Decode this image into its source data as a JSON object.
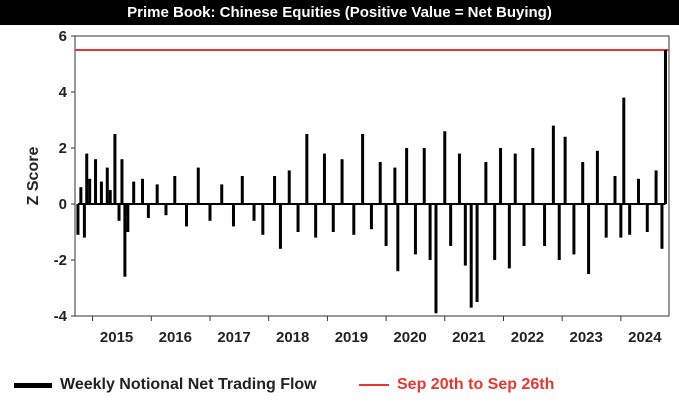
{
  "chart_data": {
    "type": "line",
    "title": "Prime Book: Chinese Equities (Positive Value = Net Buying)",
    "ylabel": "Z Score",
    "xlabel": "",
    "ylim": [
      -4,
      6
    ],
    "xlim": [
      2014.7,
      2024.82
    ],
    "yticks": [
      6,
      4,
      2,
      0,
      -2,
      -4
    ],
    "xticks": [
      "2015",
      "2016",
      "2017",
      "2018",
      "2019",
      "2020",
      "2021",
      "2022",
      "2023",
      "2024"
    ],
    "grid": false,
    "legend_position": "bottom",
    "series": [
      {
        "name": "Weekly Notional Net Trading Flow",
        "color": "#000000",
        "points": [
          [
            2014.75,
            -1.1
          ],
          [
            2014.8,
            0.6
          ],
          [
            2014.86,
            -1.2
          ],
          [
            2014.9,
            1.8
          ],
          [
            2014.95,
            0.9
          ],
          [
            2015.05,
            1.6
          ],
          [
            2015.15,
            0.8
          ],
          [
            2015.25,
            1.3
          ],
          [
            2015.3,
            0.5
          ],
          [
            2015.38,
            2.5
          ],
          [
            2015.45,
            -0.6
          ],
          [
            2015.5,
            1.6
          ],
          [
            2015.55,
            -2.6
          ],
          [
            2015.6,
            -1.0
          ],
          [
            2015.7,
            0.8
          ],
          [
            2015.85,
            0.9
          ],
          [
            2015.95,
            -0.5
          ],
          [
            2016.1,
            0.7
          ],
          [
            2016.25,
            -0.4
          ],
          [
            2016.4,
            1.0
          ],
          [
            2016.6,
            -0.8
          ],
          [
            2016.8,
            1.3
          ],
          [
            2017.0,
            -0.6
          ],
          [
            2017.2,
            0.7
          ],
          [
            2017.4,
            -0.8
          ],
          [
            2017.55,
            1.0
          ],
          [
            2017.75,
            -0.6
          ],
          [
            2017.9,
            -1.1
          ],
          [
            2018.1,
            1.0
          ],
          [
            2018.2,
            -1.6
          ],
          [
            2018.35,
            1.2
          ],
          [
            2018.5,
            -1.0
          ],
          [
            2018.65,
            2.5
          ],
          [
            2018.8,
            -1.2
          ],
          [
            2018.95,
            1.8
          ],
          [
            2019.1,
            -1.0
          ],
          [
            2019.25,
            1.6
          ],
          [
            2019.45,
            -1.1
          ],
          [
            2019.6,
            2.5
          ],
          [
            2019.75,
            -0.9
          ],
          [
            2019.9,
            1.5
          ],
          [
            2020.0,
            -1.5
          ],
          [
            2020.15,
            1.3
          ],
          [
            2020.2,
            -2.4
          ],
          [
            2020.35,
            2.0
          ],
          [
            2020.5,
            -1.8
          ],
          [
            2020.65,
            2.0
          ],
          [
            2020.75,
            -2.0
          ],
          [
            2020.85,
            -3.9
          ],
          [
            2021.0,
            2.6
          ],
          [
            2021.1,
            -1.5
          ],
          [
            2021.25,
            1.8
          ],
          [
            2021.35,
            -2.2
          ],
          [
            2021.45,
            -3.7
          ],
          [
            2021.55,
            -3.5
          ],
          [
            2021.7,
            1.5
          ],
          [
            2021.85,
            -2.0
          ],
          [
            2021.95,
            2.0
          ],
          [
            2022.1,
            -2.3
          ],
          [
            2022.2,
            1.8
          ],
          [
            2022.35,
            -1.5
          ],
          [
            2022.5,
            2.0
          ],
          [
            2022.7,
            -1.5
          ],
          [
            2022.85,
            2.8
          ],
          [
            2022.95,
            -2.0
          ],
          [
            2023.05,
            2.4
          ],
          [
            2023.2,
            -1.8
          ],
          [
            2023.35,
            1.5
          ],
          [
            2023.45,
            -2.5
          ],
          [
            2023.6,
            1.9
          ],
          [
            2023.75,
            -1.2
          ],
          [
            2023.9,
            1.0
          ],
          [
            2024.0,
            -1.2
          ],
          [
            2024.05,
            3.8
          ],
          [
            2024.15,
            -1.1
          ],
          [
            2024.3,
            0.9
          ],
          [
            2024.45,
            -1.0
          ],
          [
            2024.6,
            1.2
          ],
          [
            2024.7,
            -1.6
          ],
          [
            2024.76,
            5.5
          ]
        ]
      },
      {
        "name": "Sep 20th to Sep 26th",
        "color": "#e8372f",
        "type": "hline",
        "value": 5.5
      }
    ]
  }
}
